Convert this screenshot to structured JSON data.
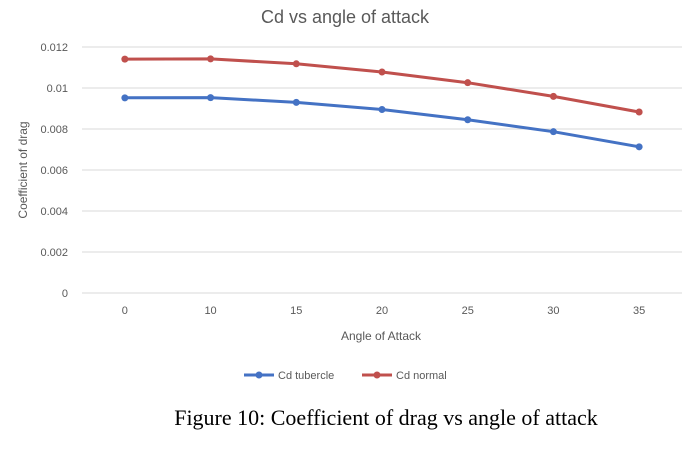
{
  "chart_data": {
    "type": "line",
    "title": "Cd vs angle of attack",
    "xlabel": "Angle of Attack",
    "ylabel": "Coefficient of drag",
    "categories": [
      "0",
      "10",
      "15",
      "20",
      "25",
      "30",
      "35"
    ],
    "ylim": [
      0,
      0.012
    ],
    "yticks": [
      "0",
      "0.002",
      "0.004",
      "0.006",
      "0.008",
      "0.01",
      "0.012"
    ],
    "grid": true,
    "legend_position": "bottom",
    "series": [
      {
        "name": "Cd tubercle",
        "color": "#4472c4",
        "values": [
          0.00952,
          0.00953,
          0.0093,
          0.00895,
          0.00845,
          0.00787,
          0.00713
        ]
      },
      {
        "name": "Cd normal",
        "color": "#c0504d",
        "values": [
          0.01141,
          0.01142,
          0.01118,
          0.01078,
          0.01026,
          0.00959,
          0.00883
        ]
      }
    ]
  },
  "caption": "Figure 10: Coefficient of drag vs angle of attack"
}
